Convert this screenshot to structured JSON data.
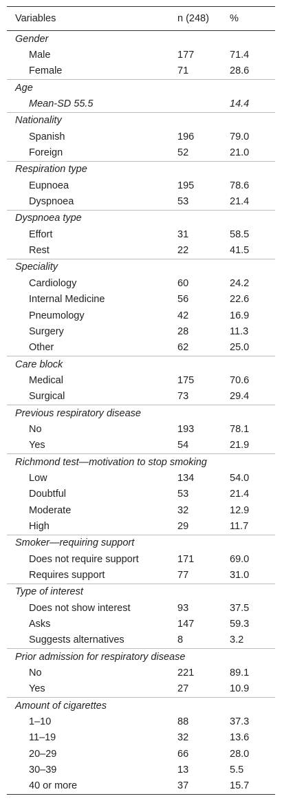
{
  "header": {
    "variables": "Variables",
    "n": "n (248)",
    "pct": "%"
  },
  "groups": [
    {
      "title": "Gender",
      "rows": [
        [
          "Male",
          "177",
          "71.4"
        ],
        [
          "Female",
          "71",
          "28.6"
        ]
      ]
    },
    {
      "title": "Age",
      "italic": true,
      "rows": [
        [
          "Mean-SD 55.5",
          "",
          "14.4"
        ]
      ]
    },
    {
      "title": "Nationality",
      "rows": [
        [
          "Spanish",
          "196",
          "79.0"
        ],
        [
          "Foreign",
          "52",
          "21.0"
        ]
      ]
    },
    {
      "title": "Respiration type",
      "rows": [
        [
          "Eupnoea",
          "195",
          "78.6"
        ],
        [
          "Dyspnoea",
          "53",
          "21.4"
        ]
      ]
    },
    {
      "title": "Dyspnoea type",
      "rows": [
        [
          "Effort",
          "31",
          "58.5"
        ],
        [
          "Rest",
          "22",
          "41.5"
        ]
      ]
    },
    {
      "title": "Speciality",
      "rows": [
        [
          "Cardiology",
          "60",
          "24.2"
        ],
        [
          "Internal Medicine",
          "56",
          "22.6"
        ],
        [
          "Pneumology",
          "42",
          "16.9"
        ],
        [
          "Surgery",
          "28",
          "11.3"
        ],
        [
          "Other",
          "62",
          "25.0"
        ]
      ]
    },
    {
      "title": "Care block",
      "rows": [
        [
          "Medical",
          "175",
          "70.6"
        ],
        [
          "Surgical",
          "73",
          "29.4"
        ]
      ]
    },
    {
      "title": "Previous respiratory disease",
      "rows": [
        [
          "No",
          "193",
          "78.1"
        ],
        [
          "Yes",
          "54",
          "21.9"
        ]
      ]
    },
    {
      "title": "Richmond test—motivation to stop smoking",
      "rows": [
        [
          "Low",
          "134",
          "54.0"
        ],
        [
          "Doubtful",
          "53",
          "21.4"
        ],
        [
          "Moderate",
          "32",
          "12.9"
        ],
        [
          "High",
          "29",
          "11.7"
        ]
      ]
    },
    {
      "title": "Smoker—requiring support",
      "rows": [
        [
          "Does not require support",
          "171",
          "69.0"
        ],
        [
          "Requires support",
          "77",
          "31.0"
        ]
      ]
    },
    {
      "title": "Type of interest",
      "rows": [
        [
          "Does not show interest",
          "93",
          "37.5"
        ],
        [
          "Asks",
          "147",
          "59.3"
        ],
        [
          "Suggests alternatives",
          "8",
          "3.2"
        ]
      ]
    },
    {
      "title": "Prior admission for respiratory disease",
      "rows": [
        [
          "No",
          "221",
          "89.1"
        ],
        [
          "Yes",
          "27",
          "10.9"
        ]
      ]
    },
    {
      "title": "Amount of cigarettes",
      "rows": [
        [
          "1–10",
          "88",
          "37.3"
        ],
        [
          "11–19",
          "32",
          "13.6"
        ],
        [
          "20–29",
          "66",
          "28.0"
        ],
        [
          "30–39",
          "13",
          "5.5"
        ],
        [
          "40 or more",
          "37",
          "15.7"
        ]
      ]
    }
  ]
}
